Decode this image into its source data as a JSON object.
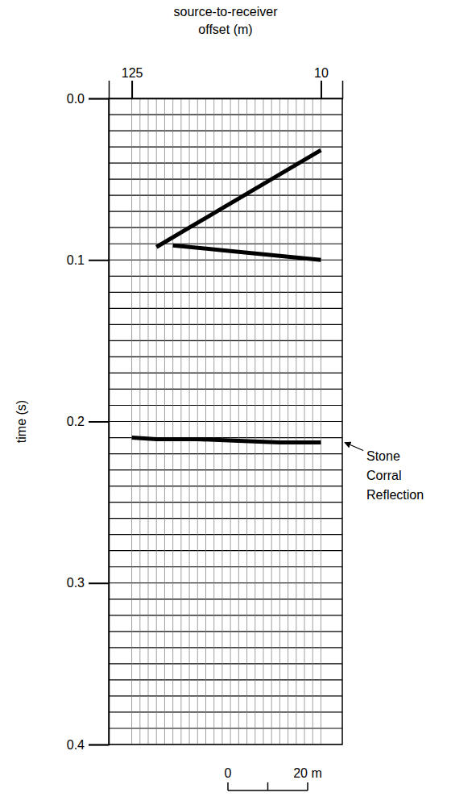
{
  "chart_data": {
    "type": "seismic",
    "x_label": "source-to-receiver offset (m)",
    "y_label": "time (s)",
    "xlim": [
      139,
      -3
    ],
    "xticks": [
      125,
      10
    ],
    "ylim": [
      0,
      0.4
    ],
    "yticks": [
      {
        "value": 0,
        "label": "0.0"
      },
      0.1,
      0.2,
      0.3,
      0.4
    ],
    "grid": true,
    "timing_lines": [
      0,
      0.01,
      0.02,
      0.03,
      0.04,
      0.05,
      0.06,
      0.07,
      0.08,
      0.09,
      0.1,
      0.11,
      0.12,
      0.13,
      0.14,
      0.15,
      0.16,
      0.17,
      0.18,
      0.19,
      0.2,
      0.21,
      0.22,
      0.23,
      0.24,
      0.25,
      0.26,
      0.27,
      0.28,
      0.29,
      0.3,
      0.31,
      0.32,
      0.33,
      0.34,
      0.35,
      0.36,
      0.37,
      0.38,
      0.39,
      0.4
    ],
    "traces": [
      125,
      120,
      115,
      110,
      105,
      100,
      95,
      90,
      85,
      80,
      75,
      70,
      65,
      60,
      55,
      50,
      45,
      40,
      35,
      30,
      25,
      20,
      15,
      10
    ],
    "series": [
      {
        "x": [
          10,
          30,
          50,
          70,
          90,
          110
        ],
        "values": [
          0.032,
          0.044,
          0.056,
          0.068,
          0.08,
          0.092
        ],
        "color": "#000000"
      },
      {
        "x": [
          10,
          40,
          70,
          100
        ],
        "values": [
          0.1,
          0.097,
          0.094,
          0.091
        ],
        "color": "#000000"
      },
      {
        "x": [
          10,
          35,
          60,
          85,
          110,
          125
        ],
        "values": [
          0.213,
          0.213,
          0.212,
          0.211,
          0.211,
          0.21
        ],
        "color": "#000000"
      }
    ],
    "annotations": [
      {
        "text": "Stone Corral Reflection",
        "y": 0.213
      }
    ],
    "scale_bar": {
      "ticks": [
        0,
        {
          "value": 20,
          "label": "20 m"
        }
      ]
    }
  }
}
